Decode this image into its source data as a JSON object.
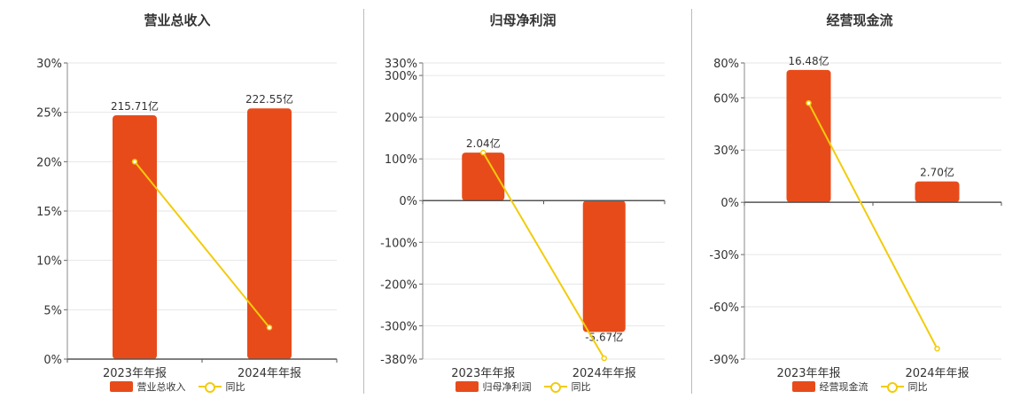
{
  "chart_data": [
    {
      "type": "bar",
      "title": "营业总收入",
      "categories": [
        "2023年年报",
        "2024年年报"
      ],
      "series": [
        {
          "name": "营业总收入",
          "type": "bar",
          "values": [
            24.7,
            25.4
          ],
          "labels": [
            "215.71亿",
            "222.55亿"
          ]
        },
        {
          "name": "同比",
          "type": "line",
          "values": [
            20.0,
            3.2
          ]
        }
      ],
      "y_ticks": [
        "30%",
        "25%",
        "20%",
        "15%",
        "10%",
        "5%",
        "0%"
      ],
      "ylim": [
        0,
        30
      ],
      "y_tick_values": [
        30,
        25,
        20,
        15,
        10,
        5,
        0
      ],
      "grid": true,
      "legend": "bottom"
    },
    {
      "type": "bar",
      "title": "归母净利润",
      "categories": [
        "2023年年报",
        "2024年年报"
      ],
      "series": [
        {
          "name": "归母净利润",
          "type": "bar",
          "values": [
            115,
            -315
          ],
          "labels": [
            "2.04亿",
            "-5.67亿"
          ]
        },
        {
          "name": "同比",
          "type": "line",
          "values": [
            115,
            -378
          ]
        }
      ],
      "y_ticks": [
        "330%",
        "300%",
        "200%",
        "100%",
        "0%",
        "-100%",
        "-200%",
        "-300%",
        "-380%"
      ],
      "ylim": [
        -380,
        330
      ],
      "y_tick_values": [
        330,
        300,
        200,
        100,
        0,
        -100,
        -200,
        -300,
        -380
      ],
      "grid": true,
      "legend": "bottom"
    },
    {
      "type": "bar",
      "title": "经营现金流",
      "categories": [
        "2023年年报",
        "2024年年报"
      ],
      "series": [
        {
          "name": "经营现金流",
          "type": "bar",
          "values": [
            76,
            12
          ],
          "labels": [
            "16.48亿",
            "2.70亿"
          ]
        },
        {
          "name": "同比",
          "type": "line",
          "values": [
            57,
            -84
          ]
        }
      ],
      "y_ticks": [
        "80%",
        "60%",
        "30%",
        "0%",
        "-30%",
        "-60%",
        "-90%"
      ],
      "ylim": [
        -90,
        80
      ],
      "y_tick_values": [
        80,
        60,
        30,
        0,
        -30,
        -60,
        -90
      ],
      "grid": true,
      "legend": "bottom"
    }
  ],
  "colors": {
    "bar": "#E84B1A",
    "line": "#F2CC0C"
  }
}
